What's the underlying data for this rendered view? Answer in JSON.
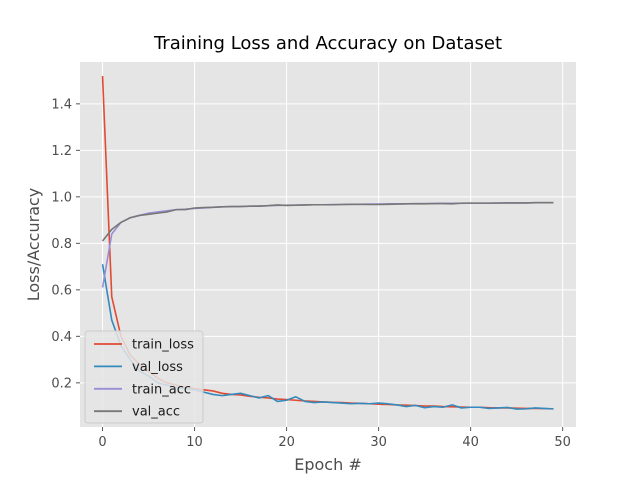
{
  "chart_data": {
    "type": "line",
    "title": "Training Loss and Accuracy on Dataset",
    "xlabel": "Epoch #",
    "ylabel": "Loss/Accuracy",
    "xlim": [
      -2.45,
      51.45
    ],
    "ylim": [
      0.01,
      1.58
    ],
    "xticks": [
      0,
      10,
      20,
      30,
      40,
      50
    ],
    "yticks": [
      0.2,
      0.4,
      0.6,
      0.8,
      1.0,
      1.2,
      1.4
    ],
    "ytick_labels": [
      "0.2",
      "0.4",
      "0.6",
      "0.8",
      "1.0",
      "1.2",
      "1.4"
    ],
    "grid": true,
    "style": "ggplot",
    "legend_position": "lower-left",
    "x": [
      0,
      1,
      2,
      3,
      4,
      5,
      6,
      7,
      8,
      9,
      10,
      11,
      12,
      13,
      14,
      15,
      16,
      17,
      18,
      19,
      20,
      21,
      22,
      23,
      24,
      25,
      26,
      27,
      28,
      29,
      30,
      31,
      32,
      33,
      34,
      35,
      36,
      37,
      38,
      39,
      40,
      41,
      42,
      43,
      44,
      45,
      46,
      47,
      48,
      49
    ],
    "series": [
      {
        "name": "train_loss",
        "color": "#E24A33",
        "values": [
          1.52,
          0.57,
          0.4,
          0.32,
          0.28,
          0.25,
          0.22,
          0.2,
          0.19,
          0.18,
          0.175,
          0.17,
          0.165,
          0.155,
          0.15,
          0.148,
          0.142,
          0.138,
          0.135,
          0.13,
          0.128,
          0.125,
          0.122,
          0.12,
          0.118,
          0.116,
          0.115,
          0.113,
          0.112,
          0.11,
          0.108,
          0.107,
          0.105,
          0.104,
          0.102,
          0.1,
          0.1,
          0.098,
          0.097,
          0.096,
          0.095,
          0.095,
          0.093,
          0.092,
          0.092,
          0.091,
          0.09,
          0.09,
          0.089,
          0.088
        ]
      },
      {
        "name": "val_loss",
        "color": "#348ABD",
        "values": [
          0.71,
          0.47,
          0.36,
          0.3,
          0.25,
          0.23,
          0.2,
          0.19,
          0.18,
          0.175,
          0.17,
          0.16,
          0.15,
          0.145,
          0.15,
          0.155,
          0.145,
          0.135,
          0.145,
          0.12,
          0.125,
          0.14,
          0.12,
          0.115,
          0.118,
          0.115,
          0.113,
          0.11,
          0.112,
          0.11,
          0.113,
          0.11,
          0.105,
          0.098,
          0.103,
          0.093,
          0.098,
          0.095,
          0.105,
          0.092,
          0.095,
          0.095,
          0.09,
          0.092,
          0.094,
          0.087,
          0.088,
          0.092,
          0.09,
          0.088
        ]
      },
      {
        "name": "train_acc",
        "color": "#988ED5",
        "values": [
          0.61,
          0.84,
          0.89,
          0.91,
          0.92,
          0.93,
          0.935,
          0.94,
          0.945,
          0.947,
          0.95,
          0.952,
          0.955,
          0.957,
          0.958,
          0.959,
          0.96,
          0.961,
          0.962,
          0.963,
          0.964,
          0.964,
          0.965,
          0.966,
          0.966,
          0.967,
          0.967,
          0.968,
          0.968,
          0.969,
          0.969,
          0.97,
          0.97,
          0.97,
          0.971,
          0.971,
          0.971,
          0.972,
          0.972,
          0.972,
          0.973,
          0.973,
          0.973,
          0.974,
          0.974,
          0.974,
          0.974,
          0.975,
          0.975,
          0.975
        ]
      },
      {
        "name": "val_acc",
        "color": "#777777",
        "values": [
          0.81,
          0.86,
          0.89,
          0.91,
          0.92,
          0.925,
          0.93,
          0.935,
          0.945,
          0.945,
          0.952,
          0.954,
          0.955,
          0.957,
          0.958,
          0.958,
          0.96,
          0.96,
          0.962,
          0.965,
          0.963,
          0.964,
          0.965,
          0.966,
          0.966,
          0.966,
          0.967,
          0.968,
          0.968,
          0.967,
          0.967,
          0.968,
          0.969,
          0.97,
          0.97,
          0.97,
          0.971,
          0.971,
          0.97,
          0.973,
          0.973,
          0.973,
          0.973,
          0.973,
          0.974,
          0.974,
          0.974,
          0.975,
          0.975,
          0.975
        ]
      }
    ]
  }
}
